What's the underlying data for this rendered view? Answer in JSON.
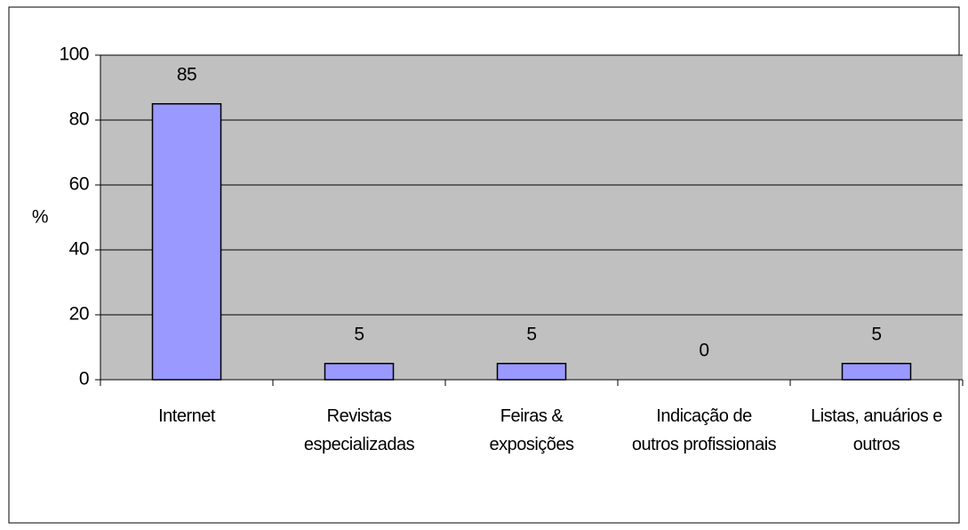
{
  "chart_data": {
    "type": "bar",
    "y_label": "%",
    "categories": [
      "Internet",
      "Revistas especializadas",
      "Feiras & exposições",
      "Indicação de outros profissionais",
      "Listas, anuários e outros"
    ],
    "values": [
      85,
      5,
      5,
      0,
      5
    ],
    "color": "#9999ff",
    "ylim": [
      0,
      100
    ],
    "yticks": [
      0,
      20,
      40,
      60,
      80,
      100
    ],
    "grid": true
  }
}
